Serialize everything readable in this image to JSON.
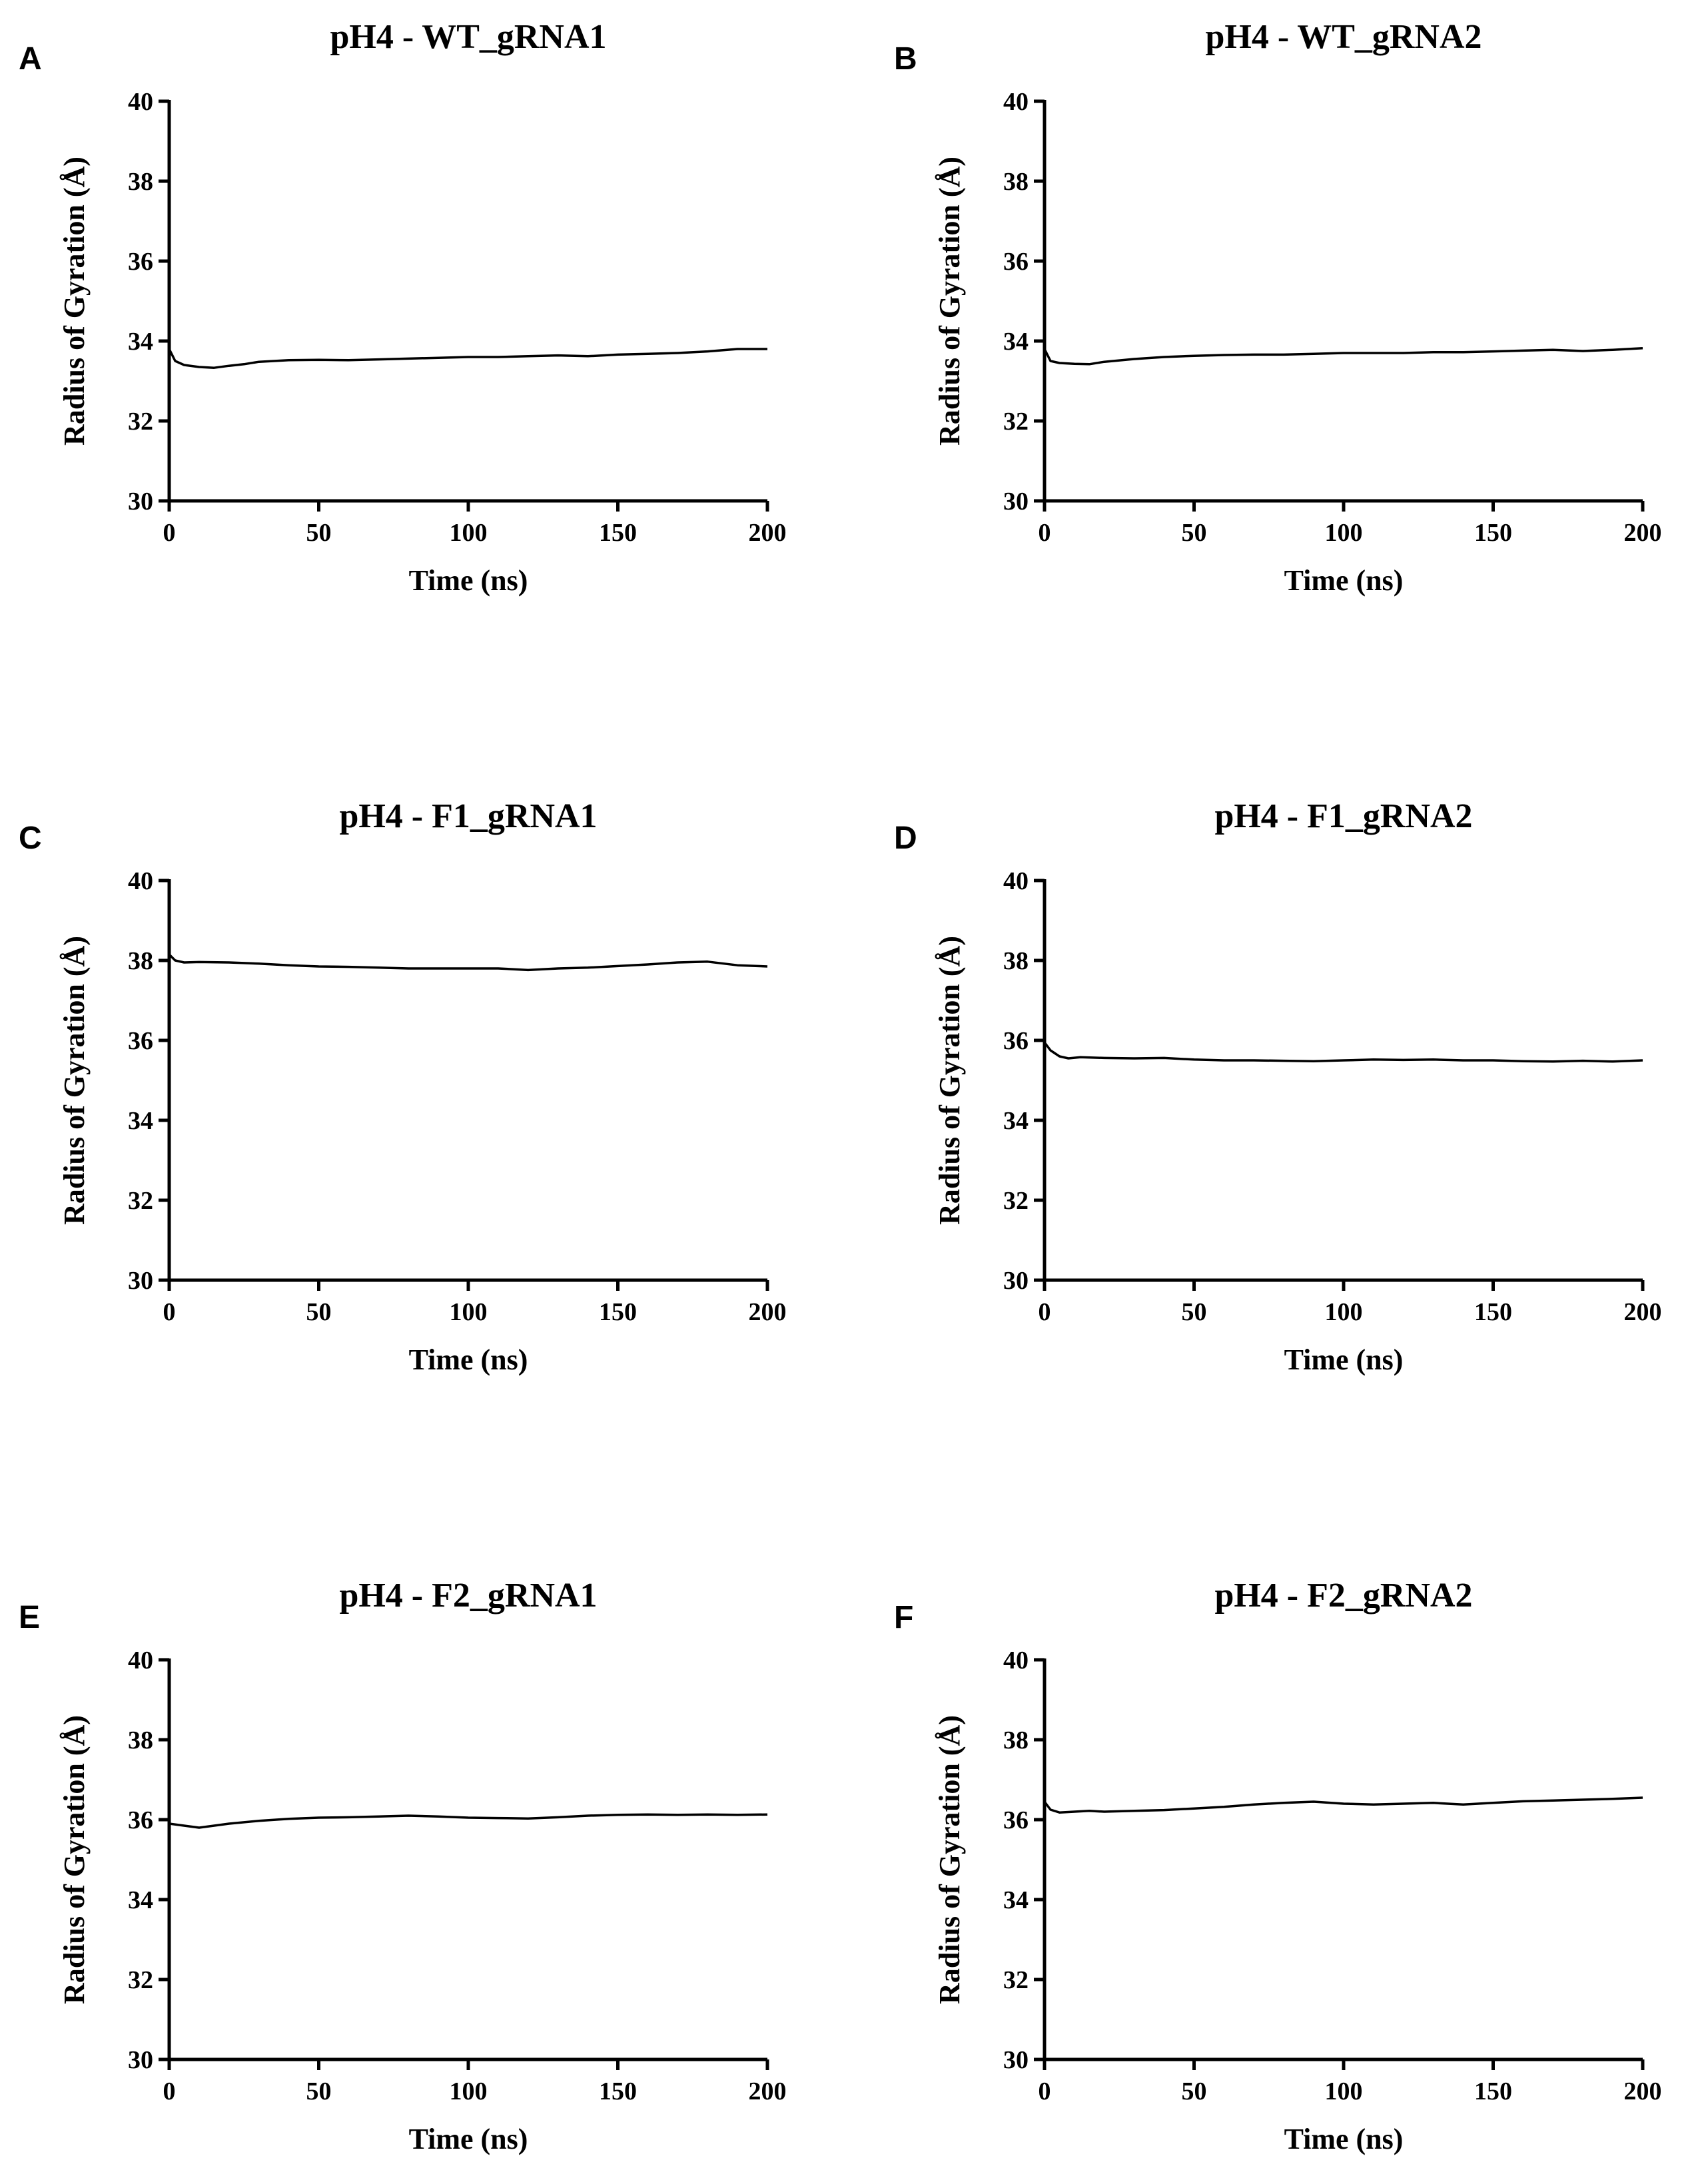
{
  "chart_data": [
    {
      "panel": "A",
      "type": "line",
      "title": "pH4 - WT_gRNA1",
      "xlabel": "Time (ns)",
      "ylabel": "Radius of Gyration (Å)",
      "xlim": [
        0,
        200
      ],
      "ylim": [
        30,
        40
      ],
      "xticks": [
        0,
        50,
        100,
        150,
        200
      ],
      "yticks": [
        30,
        32,
        34,
        36,
        38,
        40
      ],
      "series": [
        {
          "name": "Rg",
          "x": [
            0,
            2,
            5,
            10,
            15,
            20,
            25,
            30,
            40,
            50,
            60,
            70,
            80,
            90,
            100,
            110,
            120,
            130,
            140,
            150,
            160,
            170,
            180,
            190,
            200
          ],
          "y": [
            33.8,
            33.5,
            33.4,
            33.35,
            33.33,
            33.38,
            33.42,
            33.48,
            33.52,
            33.53,
            33.52,
            33.54,
            33.56,
            33.58,
            33.6,
            33.6,
            33.62,
            33.64,
            33.62,
            33.66,
            33.68,
            33.7,
            33.74,
            33.8,
            33.8
          ]
        }
      ]
    },
    {
      "panel": "B",
      "type": "line",
      "title": "pH4 - WT_gRNA2",
      "xlabel": "Time (ns)",
      "ylabel": "Radius of Gyration (Å)",
      "xlim": [
        0,
        200
      ],
      "ylim": [
        30,
        40
      ],
      "xticks": [
        0,
        50,
        100,
        150,
        200
      ],
      "yticks": [
        30,
        32,
        34,
        36,
        38,
        40
      ],
      "series": [
        {
          "name": "Rg",
          "x": [
            0,
            2,
            5,
            10,
            15,
            20,
            30,
            40,
            50,
            60,
            70,
            80,
            90,
            100,
            110,
            120,
            130,
            140,
            150,
            160,
            170,
            180,
            190,
            200
          ],
          "y": [
            33.8,
            33.5,
            33.45,
            33.43,
            33.42,
            33.48,
            33.55,
            33.6,
            33.63,
            33.65,
            33.66,
            33.66,
            33.68,
            33.7,
            33.7,
            33.7,
            33.72,
            33.72,
            33.74,
            33.76,
            33.78,
            33.75,
            33.78,
            33.82
          ]
        }
      ]
    },
    {
      "panel": "C",
      "type": "line",
      "title": "pH4 - F1_gRNA1",
      "xlabel": "Time (ns)",
      "ylabel": "Radius of Gyration (Å)",
      "xlim": [
        0,
        200
      ],
      "ylim": [
        30,
        40
      ],
      "xticks": [
        0,
        50,
        100,
        150,
        200
      ],
      "yticks": [
        30,
        32,
        34,
        36,
        38,
        40
      ],
      "series": [
        {
          "name": "Rg",
          "x": [
            0,
            2,
            5,
            10,
            20,
            30,
            40,
            50,
            60,
            70,
            80,
            90,
            100,
            110,
            120,
            130,
            140,
            150,
            160,
            170,
            180,
            190,
            200
          ],
          "y": [
            38.15,
            38.0,
            37.95,
            37.96,
            37.95,
            37.92,
            37.88,
            37.85,
            37.84,
            37.82,
            37.8,
            37.8,
            37.8,
            37.8,
            37.76,
            37.8,
            37.82,
            37.86,
            37.9,
            37.95,
            37.97,
            37.88,
            37.85
          ]
        }
      ]
    },
    {
      "panel": "D",
      "type": "line",
      "title": "pH4 - F1_gRNA2",
      "xlabel": "Time (ns)",
      "ylabel": "Radius of Gyration (Å)",
      "xlim": [
        0,
        200
      ],
      "ylim": [
        30,
        40
      ],
      "xticks": [
        0,
        50,
        100,
        150,
        200
      ],
      "yticks": [
        30,
        32,
        34,
        36,
        38,
        40
      ],
      "series": [
        {
          "name": "Rg",
          "x": [
            0,
            2,
            5,
            8,
            12,
            20,
            30,
            40,
            50,
            60,
            70,
            80,
            90,
            100,
            110,
            120,
            130,
            140,
            150,
            160,
            170,
            180,
            190,
            200
          ],
          "y": [
            35.95,
            35.75,
            35.6,
            35.55,
            35.58,
            35.56,
            35.55,
            35.56,
            35.52,
            35.5,
            35.5,
            35.49,
            35.48,
            35.5,
            35.52,
            35.51,
            35.52,
            35.5,
            35.5,
            35.48,
            35.47,
            35.49,
            35.47,
            35.5
          ]
        }
      ]
    },
    {
      "panel": "E",
      "type": "line",
      "title": "pH4 - F2_gRNA1",
      "xlabel": "Time (ns)",
      "ylabel": "Radius of Gyration (Å)",
      "xlim": [
        0,
        200
      ],
      "ylim": [
        30,
        40
      ],
      "xticks": [
        0,
        50,
        100,
        150,
        200
      ],
      "yticks": [
        30,
        32,
        34,
        36,
        38,
        40
      ],
      "series": [
        {
          "name": "Rg",
          "x": [
            0,
            5,
            10,
            15,
            20,
            30,
            40,
            50,
            60,
            70,
            80,
            90,
            100,
            110,
            120,
            130,
            140,
            150,
            160,
            170,
            180,
            190,
            200
          ],
          "y": [
            35.9,
            35.85,
            35.8,
            35.85,
            35.9,
            35.97,
            36.02,
            36.05,
            36.06,
            36.08,
            36.1,
            36.08,
            36.05,
            36.04,
            36.03,
            36.06,
            36.1,
            36.12,
            36.13,
            36.12,
            36.13,
            36.12,
            36.13
          ]
        }
      ]
    },
    {
      "panel": "F",
      "type": "line",
      "title": "pH4 - F2_gRNA2",
      "xlabel": "Time (ns)",
      "ylabel": "Radius of Gyration (Å)",
      "xlim": [
        0,
        200
      ],
      "ylim": [
        30,
        40
      ],
      "xticks": [
        0,
        50,
        100,
        150,
        200
      ],
      "yticks": [
        30,
        32,
        34,
        36,
        38,
        40
      ],
      "series": [
        {
          "name": "Rg",
          "x": [
            0,
            2,
            5,
            10,
            15,
            20,
            30,
            40,
            50,
            60,
            70,
            80,
            90,
            100,
            110,
            120,
            130,
            140,
            150,
            160,
            170,
            180,
            190,
            200
          ],
          "y": [
            36.45,
            36.25,
            36.18,
            36.2,
            36.22,
            36.2,
            36.22,
            36.24,
            36.28,
            36.32,
            36.38,
            36.42,
            36.45,
            36.4,
            36.38,
            36.4,
            36.42,
            36.38,
            36.42,
            36.46,
            36.48,
            36.5,
            36.52,
            36.55
          ]
        }
      ]
    }
  ]
}
